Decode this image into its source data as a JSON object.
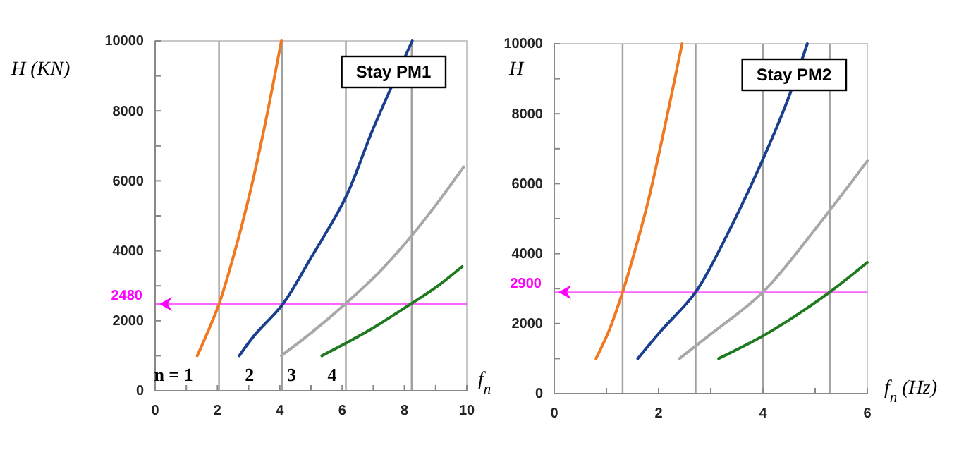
{
  "chart_data": [
    {
      "type": "line",
      "title": "Stay PM1",
      "xlabel": "f$_{n}$",
      "ylabel": "H (KN)",
      "xlim": [
        0,
        10
      ],
      "ylim": [
        0,
        10000
      ],
      "xticks": [
        0,
        {
          "value": 1,
          "label": null
        },
        2,
        {
          "value": 3,
          "label": null
        },
        4,
        {
          "value": 5,
          "label": null
        },
        6,
        {
          "value": 7,
          "label": null
        },
        8,
        {
          "value": 9,
          "label": null
        },
        10
      ],
      "yticks": [
        0,
        {
          "value": 1000,
          "label": null
        },
        2000,
        {
          "value": 3000,
          "label": null
        },
        4000,
        {
          "value": 5000,
          "label": null
        },
        6000,
        {
          "value": 7000,
          "label": null
        },
        8000,
        {
          "value": 9000,
          "label": null
        },
        10000
      ],
      "grid": false,
      "marker": "none",
      "line_style": "solid",
      "series": [
        {
          "name": "n = 1",
          "color": "#f07820",
          "x": [
            1.35,
            1.6,
            2.05,
            2.5,
            3.0,
            3.5,
            4.05
          ],
          "values": [
            1000,
            1500,
            2480,
            3800,
            5500,
            7500,
            10000
          ]
        },
        {
          "name": "2",
          "color": "#1a3f8f",
          "x": [
            2.7,
            3.2,
            4.1,
            5.0,
            6.1,
            7.0,
            8.25
          ],
          "values": [
            1000,
            1600,
            2480,
            3800,
            5500,
            7500,
            10000
          ]
        },
        {
          "name": "3",
          "color": "#a8a8a8",
          "x": [
            4.05,
            5.0,
            6.1,
            7.2,
            8.2,
            9.0,
            9.9
          ],
          "values": [
            1000,
            1650,
            2480,
            3400,
            4400,
            5300,
            6400
          ]
        },
        {
          "name": "4",
          "color": "#1f7a1f",
          "x": [
            5.35,
            6.1,
            7.0,
            8.2,
            9.0,
            9.85
          ],
          "values": [
            1000,
            1350,
            1800,
            2480,
            2950,
            3550
          ]
        }
      ],
      "ref_lines": [
        {
          "axis": "y",
          "value": 2480,
          "label": "2480",
          "color": "#ff00ff"
        },
        {
          "axis": "x",
          "value": 2.05,
          "color": "#a0a0a0"
        },
        {
          "axis": "x",
          "value": 4.07,
          "color": "#a0a0a0"
        },
        {
          "axis": "x",
          "value": 6.12,
          "color": "#a0a0a0"
        },
        {
          "axis": "x",
          "value": 8.23,
          "color": "#a0a0a0"
        }
      ]
    },
    {
      "type": "line",
      "title": "Stay PM2",
      "xlabel": "f$_{n}$ (Hz)",
      "ylabel": "H",
      "xlim": [
        0,
        6
      ],
      "ylim": [
        0,
        10000
      ],
      "xticks": [
        0,
        {
          "value": 1,
          "label": null
        },
        2,
        {
          "value": 3,
          "label": null
        },
        4,
        {
          "value": 5,
          "label": null
        },
        6
      ],
      "yticks": [
        0,
        {
          "value": 1000,
          "label": null
        },
        2000,
        {
          "value": 3000,
          "label": null
        },
        4000,
        {
          "value": 5000,
          "label": null
        },
        6000,
        {
          "value": 7000,
          "label": null
        },
        8000,
        {
          "value": 9000,
          "label": null
        },
        10000
      ],
      "grid": false,
      "marker": "none",
      "line_style": "solid",
      "series": [
        {
          "color": "#f07820",
          "x": [
            0.8,
            1.05,
            1.31,
            1.53,
            1.8,
            2.1,
            2.45
          ],
          "values": [
            1000,
            1800,
            2900,
            4000,
            5500,
            7500,
            10000
          ]
        },
        {
          "color": "#1a3f8f",
          "x": [
            1.6,
            2.05,
            2.71,
            3.3,
            4.0,
            4.45,
            4.85
          ],
          "values": [
            1000,
            1800,
            2900,
            4500,
            6700,
            8300,
            10000
          ]
        },
        {
          "color": "#a8a8a8",
          "x": [
            2.4,
            3.0,
            4.0,
            5.0,
            6.0
          ],
          "values": [
            1000,
            1700,
            2900,
            4700,
            6650
          ]
        },
        {
          "color": "#1f7a1f",
          "x": [
            3.15,
            4.0,
            4.6,
            5.28,
            6.0
          ],
          "values": [
            1000,
            1650,
            2200,
            2900,
            3750
          ]
        }
      ],
      "ref_lines": [
        {
          "axis": "y",
          "value": 2900,
          "label": "2900",
          "color": "#ff00ff"
        },
        {
          "axis": "x",
          "value": 1.31,
          "color": "#a0a0a0"
        },
        {
          "axis": "x",
          "value": 2.71,
          "color": "#a0a0a0"
        },
        {
          "axis": "x",
          "value": 4.0,
          "color": "#a0a0a0"
        },
        {
          "axis": "x",
          "value": 5.28,
          "color": "#a0a0a0"
        }
      ]
    }
  ]
}
